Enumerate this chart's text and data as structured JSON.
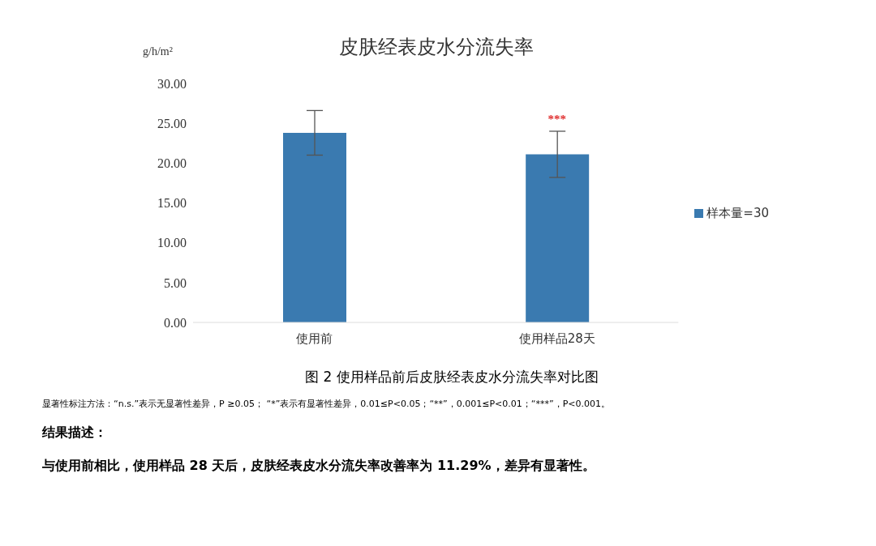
{
  "chart_data": {
    "type": "bar",
    "title": "皮肤经表皮水分流失率",
    "ylabel": "g/h/m²",
    "categories": [
      "使用前",
      "使用样品28天"
    ],
    "series": [
      {
        "name": "样本量=30",
        "color": "#3a7ab0",
        "values": [
          23.8,
          21.1
        ],
        "errors": [
          2.8,
          2.9
        ]
      }
    ],
    "ylim": [
      0,
      30
    ],
    "yticks": [
      {
        "value": 0,
        "label": "0.00"
      },
      {
        "value": 5,
        "label": "5.00"
      },
      {
        "value": 10,
        "label": "10.00"
      },
      {
        "value": 15,
        "label": "15.00"
      },
      {
        "value": 20,
        "label": "20.00"
      },
      {
        "value": 25,
        "label": "25.00"
      },
      {
        "value": 30,
        "label": "30.00"
      }
    ],
    "grid": false,
    "legend": "right",
    "annotations": [
      {
        "text": "***",
        "x": "使用样品28天",
        "y": 24
      },
      "图 2  使用样品前后皮肤经表皮水分流失率对比图",
      "显著性标注方法：“n.s.”表示无显著性差异，P ≥0.05；  “*”表示有显著性差异，0.01≤P<0.05；“**”，0.001≤P<0.01；“***”，P<0.001。",
      "结果描述：",
      "与使用前相比，使用样品 28 天后，皮肤经表皮水分流失率改善率为 11.29%，差异有显著性。"
    ]
  }
}
